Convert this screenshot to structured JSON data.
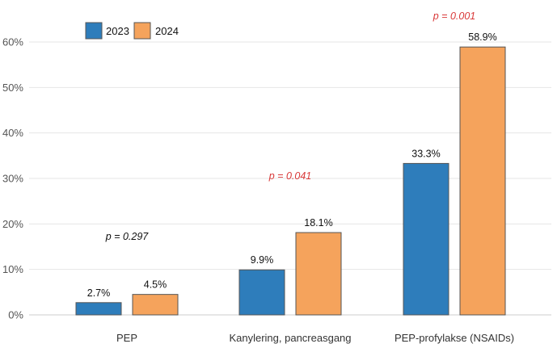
{
  "chart_data": {
    "type": "bar",
    "title": "",
    "xlabel": "",
    "ylabel": "",
    "ylim": [
      0,
      60
    ],
    "yticks": [
      0,
      10,
      20,
      30,
      40,
      50,
      60
    ],
    "ytick_labels": [
      "0%",
      "10%",
      "20%",
      "30%",
      "40%",
      "50%",
      "60%"
    ],
    "grid": true,
    "legend_position": "top-left",
    "categories": [
      "PEP",
      "Kanylering, pancreasgang",
      "PEP-profylakse (NSAIDs)"
    ],
    "series": [
      {
        "name": "2023",
        "color": "#2e7dbb",
        "values": [
          2.7,
          9.9,
          33.3
        ],
        "value_labels": [
          "2.7%",
          "9.9%",
          "33.3%"
        ]
      },
      {
        "name": "2024",
        "color": "#f5a35c",
        "values": [
          4.5,
          18.1,
          58.9
        ],
        "value_labels": [
          "4.5%",
          "18.1%",
          "58.9%"
        ]
      }
    ],
    "annotations": [
      {
        "category": "PEP",
        "text": "p = 0.297",
        "color": "#111111",
        "level": 16.5
      },
      {
        "category": "Kanylering, pancreasgang",
        "text": "p = 0.041",
        "color": "#d93a3a",
        "level": 29.8
      },
      {
        "category": "PEP-profylakse (NSAIDs)",
        "text": "p = 0.001",
        "color": "#d93a3a",
        "level": 65.0
      }
    ]
  }
}
